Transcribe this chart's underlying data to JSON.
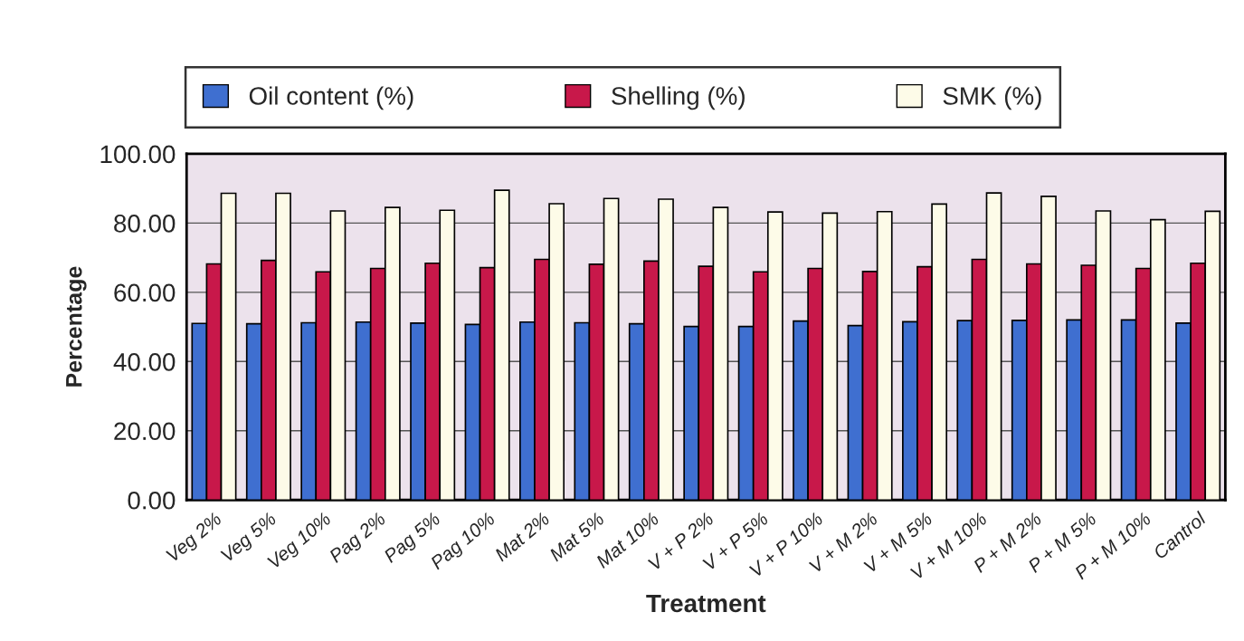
{
  "chart_data": {
    "type": "bar",
    "xlabel": "Treatment",
    "ylabel": "Percentage",
    "categories": [
      "Veg 2%",
      "Veg 5%",
      "Veg 10%",
      "Pag 2%",
      "Pag 5%",
      "Pag 10%",
      "Mat 2%",
      "Mat 5%",
      "Mat 10%",
      "V + P 2%",
      "V + P 5%",
      "V + P 10%",
      "V + M 2%",
      "V + M 5%",
      "V + M 10%",
      "P + M 2%",
      "P + M 5%",
      "P + M 10%",
      "Cantrol"
    ],
    "series": [
      {
        "name": "Oil content (%)",
        "color": "#3f6fd0",
        "values": [
          51.0,
          50.9,
          51.2,
          51.4,
          51.1,
          50.7,
          51.4,
          51.2,
          50.9,
          50.1,
          50.1,
          51.7,
          50.4,
          51.5,
          51.8,
          51.9,
          52.0,
          52.0,
          51.1
        ]
      },
      {
        "name": "Shelling (%)",
        "color": "#c8184a",
        "values": [
          68.2,
          69.2,
          65.9,
          66.9,
          68.4,
          67.1,
          69.5,
          68.1,
          69.0,
          67.5,
          65.9,
          66.9,
          66.0,
          67.4,
          69.5,
          68.2,
          67.8,
          66.9,
          68.4
        ]
      },
      {
        "name": "SMK (%)",
        "color": "#fdfbe8",
        "values": [
          88.6,
          88.6,
          83.5,
          84.5,
          83.7,
          89.5,
          85.6,
          87.1,
          86.9,
          84.5,
          83.2,
          82.9,
          83.3,
          85.5,
          88.7,
          87.7,
          83.5,
          81.0,
          83.4
        ]
      }
    ],
    "ylim": [
      0,
      100
    ],
    "yticks": [
      {
        "value": 0,
        "label": "0.00"
      },
      {
        "value": 20,
        "label": "20.00"
      },
      {
        "value": 40,
        "label": "40.00"
      },
      {
        "value": 60,
        "label": "60.00"
      },
      {
        "value": 80,
        "label": "80.00"
      },
      {
        "value": 100,
        "label": "100.00"
      }
    ],
    "grid": "y",
    "legend": "top"
  }
}
